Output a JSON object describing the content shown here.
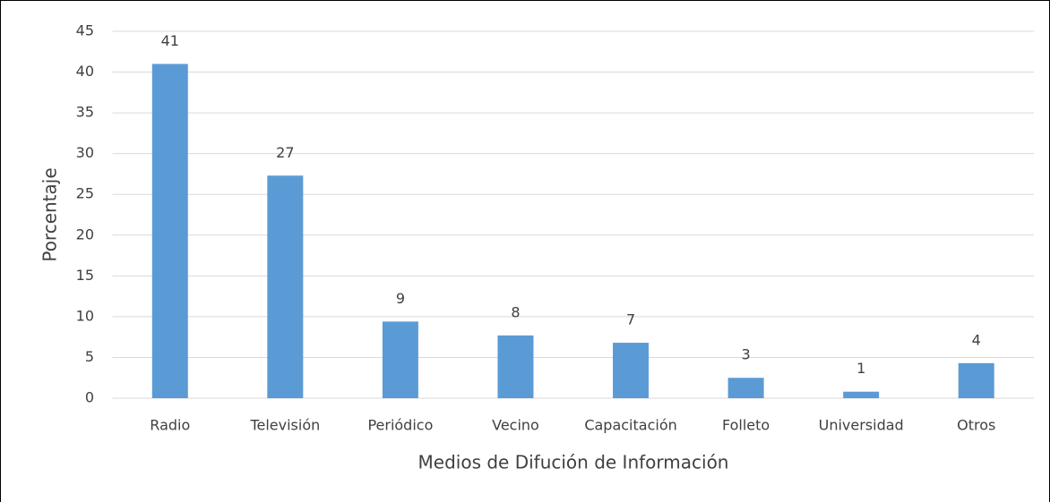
{
  "chart_data": {
    "type": "bar",
    "x_label": "Medios de Difución de Información",
    "y_label": "Porcentaje",
    "categories": [
      "Radio",
      "Televisión",
      "Periódico",
      "Vecino",
      "Capacitación",
      "Folleto",
      "Universidad",
      "Otros"
    ],
    "values": [
      41,
      27.3,
      9.4,
      7.7,
      6.8,
      2.5,
      0.8,
      4.3
    ],
    "value_labels": [
      "41",
      "27",
      "9",
      "8",
      "7",
      "3",
      "1",
      "4"
    ],
    "color": "#5b9bd5",
    "ylim": [
      0,
      45
    ],
    "yticks": [
      0,
      5,
      10,
      15,
      20,
      25,
      30,
      35,
      40,
      45
    ],
    "grid": true
  }
}
